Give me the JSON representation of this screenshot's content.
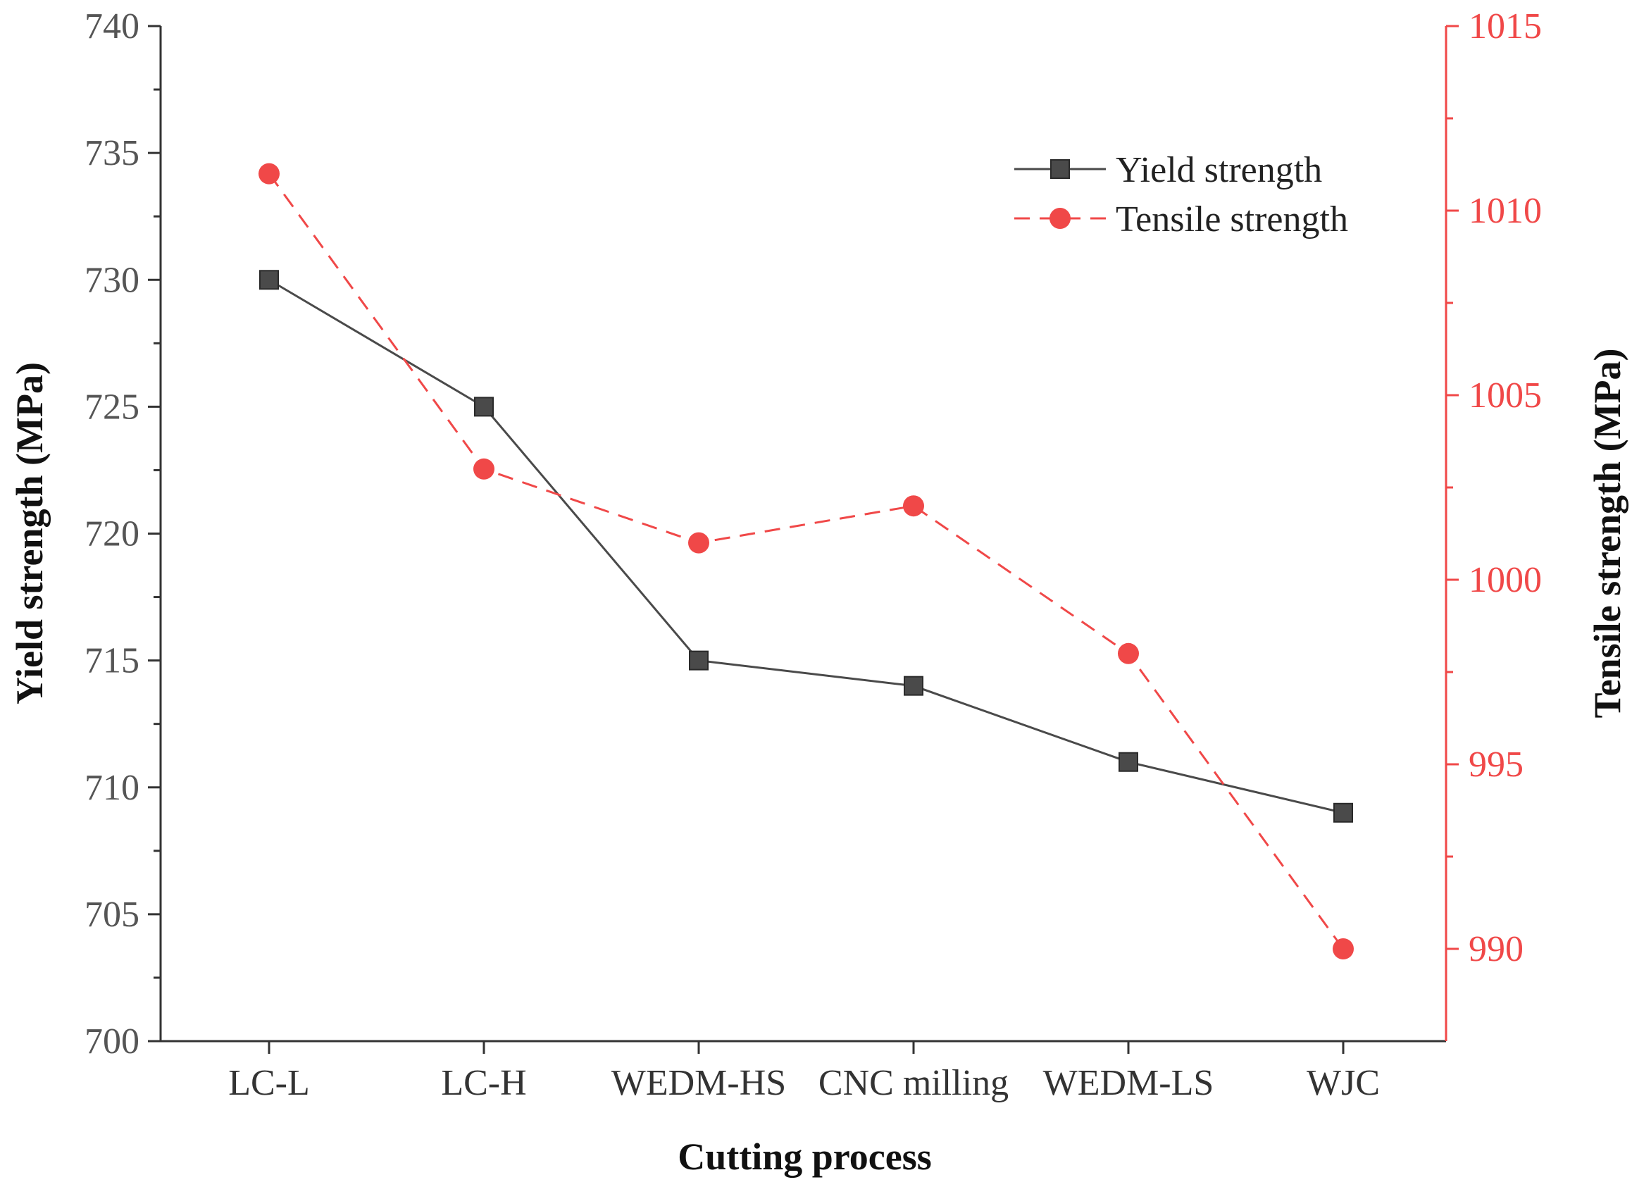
{
  "chart_data": {
    "type": "line",
    "title": "",
    "xlabel": "Cutting process",
    "ylabel": "Yield strength (MPa)",
    "y2label": "Tensile strength (MPa)",
    "categories": [
      "LC-L",
      "LC-H",
      "WEDM-HS",
      "CNC milling",
      "WEDM-LS",
      "WJC"
    ],
    "ylim": [
      700,
      740
    ],
    "y2lim": [
      987.5,
      1015
    ],
    "yticks": [
      700,
      705,
      710,
      715,
      720,
      725,
      730,
      735,
      740
    ],
    "y2ticks": [
      990,
      995,
      1000,
      1005,
      1010,
      1015
    ],
    "legend_position": "top-right",
    "grid": false,
    "series": [
      {
        "name": "Yield strength",
        "axis": "left",
        "values": [
          730,
          725,
          715,
          714,
          711,
          709
        ],
        "color": "#4a4a4a",
        "line_style": "solid",
        "marker": "square"
      },
      {
        "name": "Tensile strength",
        "axis": "right",
        "values": [
          1011,
          1003,
          1001,
          1002,
          998,
          990
        ],
        "color": "#f04848",
        "line_style": "dashed",
        "marker": "circle"
      }
    ]
  }
}
